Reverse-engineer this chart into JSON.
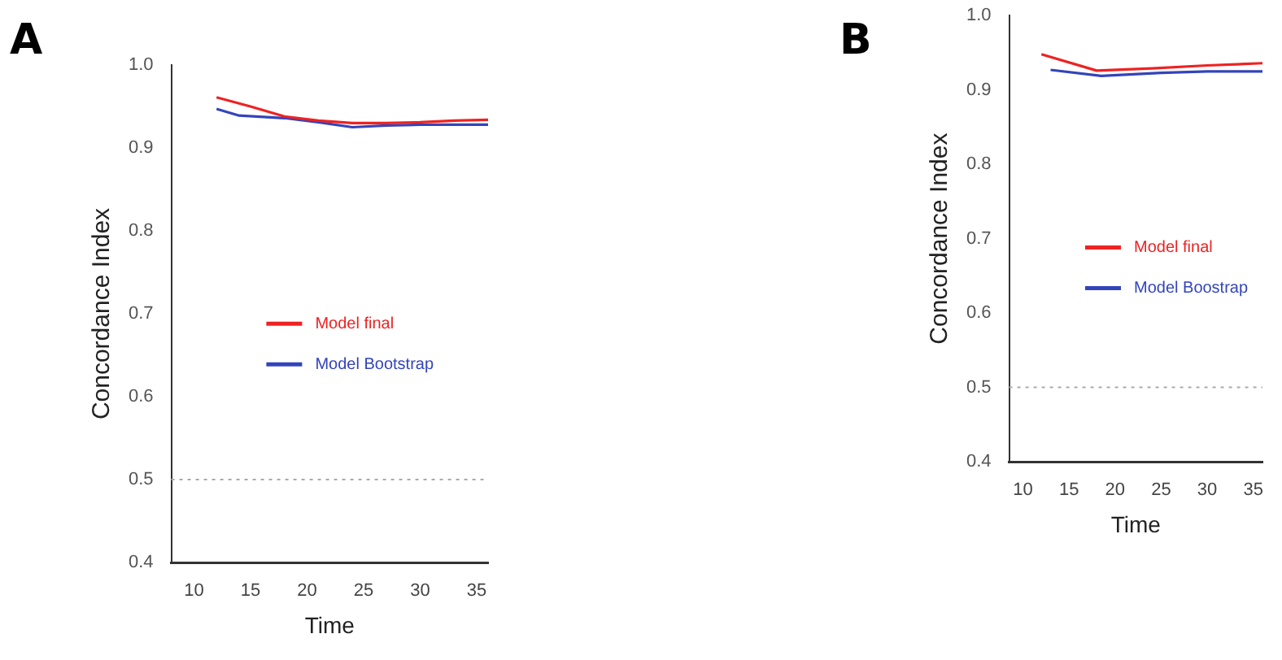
{
  "chart_data": [
    {
      "type": "line",
      "title": "A",
      "xlabel": "Time",
      "ylabel": "Concordance Index",
      "xlim": [
        8,
        36
      ],
      "xticks": [
        10,
        15,
        20,
        25,
        30,
        35
      ],
      "ylim": [
        0.4,
        1.0
      ],
      "yticks": [
        {
          "value": 0.4,
          "label": "0.4"
        },
        {
          "value": 0.5,
          "label": "0.5"
        },
        {
          "value": 0.6,
          "label": "0.6"
        },
        {
          "value": 0.7,
          "label": "0.7"
        },
        {
          "value": 0.8,
          "label": "0.8"
        },
        {
          "value": 0.9,
          "label": "0.9"
        },
        {
          "value": 1.0,
          "label": "1.0"
        }
      ],
      "grid": false,
      "legend": "center",
      "marker": "none",
      "line_style": "solid",
      "series": [
        {
          "name": "Model final",
          "color": "#ee2222",
          "x": [
            12,
            15,
            18,
            21,
            24,
            27,
            30,
            33,
            36
          ],
          "values": [
            0.961,
            0.95,
            0.938,
            0.933,
            0.93,
            0.93,
            0.931,
            0.933,
            0.934
          ]
        },
        {
          "name": "Model Bootstrap",
          "color": "#3344bb",
          "x": [
            12,
            14,
            18,
            21,
            24,
            27,
            30,
            36
          ],
          "values": [
            0.947,
            0.939,
            0.936,
            0.931,
            0.925,
            0.927,
            0.928,
            0.928
          ]
        }
      ],
      "ref_lines": [
        {
          "axis": "y",
          "value": 0.5,
          "color": "#aaaaaa",
          "line_style": "dotted"
        }
      ]
    },
    {
      "type": "line",
      "title": "B",
      "xlabel": "Time",
      "ylabel": "Concordance Index",
      "xlim": [
        8.5,
        36
      ],
      "xticks": [
        10,
        15,
        20,
        25,
        30,
        35
      ],
      "ylim": [
        0.4,
        1.0
      ],
      "yticks": [
        {
          "value": 0.4,
          "label": "0.4"
        },
        {
          "value": 0.5,
          "label": "0.5"
        },
        {
          "value": 0.6,
          "label": "0.6"
        },
        {
          "value": 0.7,
          "label": "0.7"
        },
        {
          "value": 0.8,
          "label": "0.8"
        },
        {
          "value": 0.9,
          "label": "0.9"
        },
        {
          "value": 1.0,
          "label": "1.0"
        }
      ],
      "grid": false,
      "legend": "center",
      "marker": "none",
      "line_style": "solid",
      "series": [
        {
          "name": "Model final",
          "color": "#ee2222",
          "x": [
            12,
            18,
            24,
            30,
            36
          ],
          "values": [
            0.948,
            0.926,
            0.929,
            0.933,
            0.936
          ]
        },
        {
          "name": "Model Boostrap",
          "color": "#3344bb",
          "x": [
            13,
            18.5,
            25,
            30,
            36
          ],
          "values": [
            0.927,
            0.919,
            0.923,
            0.925,
            0.925
          ]
        }
      ],
      "ref_lines": [
        {
          "axis": "y",
          "value": 0.5,
          "color": "#aaaaaa",
          "line_style": "dotted"
        }
      ]
    }
  ]
}
